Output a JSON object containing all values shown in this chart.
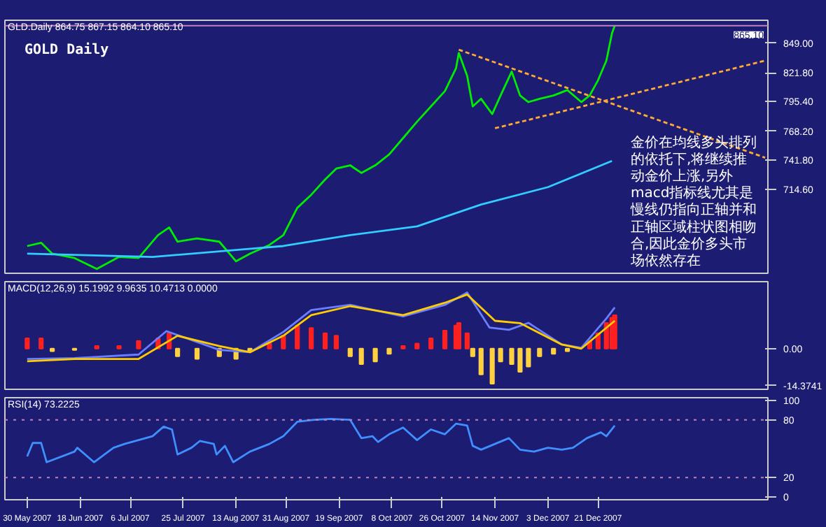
{
  "chart_data": [
    {
      "type": "line",
      "title": "GOLD Daily",
      "annotations": [
        "GLD.Daily 864.75 867.15 864.10 865.10",
        "金价在均线多头排列的依托下,将继续推动金价上涨,另外macd指标线尤其是慢线仍指向正轴并和正轴区域柱状图相吻合,因此金价多头市场依然存在"
      ],
      "xlim": [
        "2007-05-22",
        "2008-02-20"
      ],
      "ylim": [
        638,
        870
      ],
      "yticks": [
        {
          "value": 714.6,
          "label": "714.60"
        },
        {
          "value": 741.8,
          "label": "741.80"
        },
        {
          "value": 768.2,
          "label": "768.20"
        },
        {
          "value": 795.4,
          "label": "795.40"
        },
        {
          "value": 821.8,
          "label": "821.80"
        },
        {
          "value": 849,
          "label": "849.00"
        }
      ],
      "ref_lines": [
        {
          "axis": "y",
          "value": 865.1,
          "label": "865.10",
          "color": "#c080c0"
        }
      ],
      "tick_labels": "y",
      "grid": false,
      "series": [
        {
          "color": "#00ee00",
          "x": [
            "2007-05-30",
            "2007-06-04",
            "2007-06-08",
            "2007-06-16",
            "2007-06-24",
            "2007-07-02",
            "2007-07-09",
            "2007-07-16",
            "2007-07-20",
            "2007-07-23",
            "2007-07-30",
            "2007-08-07",
            "2007-08-13",
            "2007-08-18",
            "2007-08-25",
            "2007-08-30",
            "2007-09-04",
            "2007-09-09",
            "2007-09-14",
            "2007-09-18",
            "2007-09-23",
            "2007-09-27",
            "2007-10-02",
            "2007-10-07",
            "2007-10-12",
            "2007-10-17",
            "2007-10-22",
            "2007-10-27",
            "2007-10-31",
            "2007-11-01",
            "2007-11-04",
            "2007-11-06",
            "2007-11-09",
            "2007-11-13",
            "2007-11-16",
            "2007-11-20",
            "2007-11-23",
            "2007-11-26",
            "2007-11-30",
            "2007-12-05",
            "2007-12-10",
            "2007-12-15",
            "2007-12-18",
            "2007-12-21",
            "2007-12-24",
            "2007-12-26",
            "2007-12-27"
          ],
          "values": [
            663,
            666,
            656,
            652,
            642,
            653,
            652,
            673,
            680,
            667,
            670,
            667,
            649,
            656,
            664,
            673,
            698,
            710,
            724,
            734,
            737,
            730,
            737,
            747,
            762,
            777,
            791,
            805,
            826,
            840,
            819,
            791,
            798,
            784,
            801,
            823,
            801,
            795,
            798,
            801,
            806,
            795,
            801,
            815,
            833,
            858,
            865
          ]
        },
        {
          "color": "#33ccff",
          "x": [
            "2007-05-30",
            "2007-07-14",
            "2007-08-16",
            "2007-08-30",
            "2007-09-23",
            "2007-10-17",
            "2007-11-09",
            "2007-12-03",
            "2007-12-26"
          ],
          "values": [
            656,
            653,
            660,
            663,
            673,
            681,
            701,
            717,
            741
          ]
        },
        {
          "color": "#ffaa33",
          "line_style": "dashed",
          "x": [
            "2007-11-01",
            "2008-02-19"
          ],
          "values": [
            843,
            744
          ]
        },
        {
          "color": "#ffaa33",
          "line_style": "dashed",
          "x": [
            "2007-11-14",
            "2008-02-19"
          ],
          "values": [
            771,
            833
          ]
        }
      ]
    },
    {
      "type": "line",
      "annotations": [
        "MACD(12,26,9) 15.1992 9.9635 10.4713 0.0000"
      ],
      "xlim": [
        "2007-05-22",
        "2008-02-20"
      ],
      "ylim": [
        -15.8,
        26
      ],
      "yticks": [
        {
          "value": -14.3741,
          "label": "-14.3741"
        },
        {
          "value": 0,
          "label": "0.00"
        }
      ],
      "tick_labels": "y",
      "grid": false,
      "series": [
        {
          "type": "bar",
          "x": [
            "2007-05-30",
            "2007-06-04",
            "2007-06-08",
            "2007-06-16",
            "2007-06-24",
            "2007-07-02",
            "2007-07-09",
            "2007-07-16",
            "2007-07-20",
            "2007-07-23",
            "2007-07-30",
            "2007-08-07",
            "2007-08-13",
            "2007-08-18",
            "2007-08-25",
            "2007-08-30",
            "2007-09-04",
            "2007-09-09",
            "2007-09-14",
            "2007-09-18",
            "2007-09-23",
            "2007-09-27",
            "2007-10-02",
            "2007-10-07",
            "2007-10-12",
            "2007-10-17",
            "2007-10-22",
            "2007-10-27",
            "2007-10-31",
            "2007-11-01",
            "2007-11-04",
            "2007-11-06",
            "2007-11-09",
            "2007-11-13",
            "2007-11-16",
            "2007-11-20",
            "2007-11-23",
            "2007-11-26",
            "2007-11-30",
            "2007-12-05",
            "2007-12-10",
            "2007-12-15",
            "2007-12-18",
            "2007-12-21",
            "2007-12-24",
            "2007-12-26",
            "2007-12-27"
          ],
          "values": [
            4,
            4,
            -1,
            -0.5,
            1,
            1,
            3,
            4,
            6,
            -3,
            -4,
            -3,
            -4,
            -1,
            2,
            5,
            9,
            8,
            6,
            5,
            -3,
            -6,
            -5,
            -2,
            1,
            2,
            4,
            7,
            9,
            10,
            6,
            -3,
            -10,
            -13.6,
            -5,
            -6,
            -9,
            -7,
            -3,
            -2,
            -1,
            null,
            3,
            6,
            10,
            12,
            13
          ],
          "colors": [
            "#ff2020",
            "#ff2020",
            "#ffd040",
            "#ffd040",
            "#ff2020",
            "#ff2020",
            "#ff2020",
            "#ff2020",
            "#ff2020",
            "#ffd040",
            "#ffd040",
            "#ffd040",
            "#ffd040",
            "#ffd040",
            "#ff2020",
            "#ff2020",
            "#ff2020",
            "#ff2020",
            "#ff2020",
            "#ff2020",
            "#ffd040",
            "#ffd040",
            "#ffd040",
            "#ffd040",
            "#ff2020",
            "#ff2020",
            "#ff2020",
            "#ff2020",
            "#ff2020",
            "#ff2020",
            "#ff2020",
            "#ffd040",
            "#ffd040",
            "#ffd040",
            "#ffd040",
            "#ffd040",
            "#ffd040",
            "#ffd040",
            "#ffd040",
            "#ffd040",
            "#ffd040",
            "#ff2020",
            "#ff2020",
            "#ff2020",
            "#ff2020",
            "#ff2020",
            "#ff2020"
          ]
        },
        {
          "color": "#6a7fff",
          "x": [
            "2007-05-30",
            "2007-06-16",
            "2007-07-09",
            "2007-07-19",
            "2007-08-07",
            "2007-08-18",
            "2007-08-30",
            "2007-09-09",
            "2007-09-23",
            "2007-10-12",
            "2007-10-27",
            "2007-11-04",
            "2007-11-12",
            "2007-11-19",
            "2007-11-26",
            "2007-12-08",
            "2007-12-15",
            "2007-12-24",
            "2007-12-27"
          ],
          "values": [
            -4,
            -3.7,
            -2.3,
            6.8,
            -0.5,
            -1.4,
            6.5,
            15,
            17,
            12.5,
            17,
            21.8,
            8.2,
            7.3,
            10,
            1.6,
            0.3,
            11.7,
            16
          ]
        },
        {
          "color": "#ffcc00",
          "x": [
            "2007-05-30",
            "2007-06-16",
            "2007-07-09",
            "2007-07-23",
            "2007-08-07",
            "2007-08-18",
            "2007-08-30",
            "2007-09-09",
            "2007-09-23",
            "2007-10-12",
            "2007-10-27",
            "2007-11-04",
            "2007-11-14",
            "2007-11-23",
            "2007-12-08",
            "2007-12-15",
            "2007-12-27"
          ],
          "values": [
            -4.9,
            -4,
            -4,
            5,
            1,
            -1.4,
            5,
            13,
            16.5,
            13,
            17.8,
            21,
            10.8,
            9.9,
            1.6,
            0,
            10.8
          ]
        }
      ]
    },
    {
      "type": "line",
      "annotations": [
        "RSI(14) 73.2225"
      ],
      "xlim": [
        "2007-05-22",
        "2008-02-20"
      ],
      "ylim": [
        -3,
        103
      ],
      "yticks": [
        0,
        20,
        80,
        100
      ],
      "xticks": [
        {
          "value": "2007-05-30",
          "label": "30 May 2007"
        },
        {
          "value": "2007-06-18",
          "label": "18 Jun 2007"
        },
        {
          "value": "2007-07-06",
          "label": "6 Jul 2007"
        },
        {
          "value": "2007-07-25",
          "label": "25 Jul 2007"
        },
        {
          "value": "2007-08-13",
          "label": "13 Aug 2007"
        },
        {
          "value": "2007-08-31",
          "label": "31 Aug 2007"
        },
        {
          "value": "2007-09-19",
          "label": "19 Sep 2007"
        },
        {
          "value": "2007-10-08",
          "label": "8 Oct 2007"
        },
        {
          "value": "2007-10-26",
          "label": "26 Oct 2007"
        },
        {
          "value": "2007-11-14",
          "label": "14 Nov 2007"
        },
        {
          "value": "2007-12-03",
          "label": "3 Dec 2007"
        },
        {
          "value": "2007-12-21",
          "label": "21 Dec 2007"
        }
      ],
      "ref_lines": [
        {
          "axis": "y",
          "value": 80,
          "color": "#c080c0",
          "line_style": "dotted"
        },
        {
          "axis": "y",
          "value": 20,
          "color": "#c080c0",
          "line_style": "dotted"
        }
      ],
      "grid": false,
      "series": [
        {
          "color": "#3f8fff",
          "x": [
            "2007-05-30",
            "2007-06-01",
            "2007-06-04",
            "2007-06-06",
            "2007-06-16",
            "2007-06-17",
            "2007-06-23",
            "2007-06-30",
            "2007-07-04",
            "2007-07-14",
            "2007-07-18",
            "2007-07-21",
            "2007-07-23",
            "2007-07-28",
            "2007-07-31",
            "2007-08-05",
            "2007-08-06",
            "2007-08-09",
            "2007-08-12",
            "2007-08-18",
            "2007-08-25",
            "2007-08-30",
            "2007-09-04",
            "2007-09-10",
            "2007-09-16",
            "2007-09-23",
            "2007-09-27",
            "2007-10-01",
            "2007-10-03",
            "2007-10-07",
            "2007-10-12",
            "2007-10-17",
            "2007-10-22",
            "2007-10-27",
            "2007-10-31",
            "2007-11-04",
            "2007-11-06",
            "2007-11-09",
            "2007-11-14",
            "2007-11-19",
            "2007-11-23",
            "2007-11-28",
            "2007-12-03",
            "2007-12-08",
            "2007-12-12",
            "2007-12-17",
            "2007-12-22",
            "2007-12-24",
            "2007-12-27"
          ],
          "values": [
            42,
            56,
            56,
            36,
            47,
            51,
            36,
            51,
            55,
            63,
            73,
            70,
            44,
            51,
            58,
            55,
            44,
            53,
            36,
            47,
            55,
            63,
            78,
            80,
            81,
            80,
            61,
            63,
            57,
            65,
            72,
            59,
            70,
            65,
            76,
            74,
            53,
            49,
            55,
            61,
            49,
            47,
            51,
            49,
            51,
            61,
            67,
            63,
            74
          ]
        }
      ]
    }
  ]
}
